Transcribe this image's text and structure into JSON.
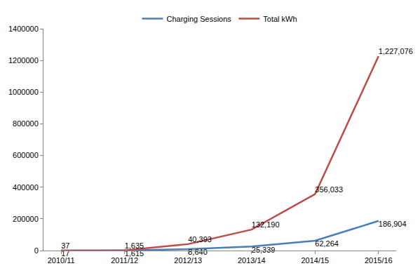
{
  "chart_data": {
    "type": "line",
    "categories": [
      "2010/11",
      "2011/12",
      "2012/13",
      "2013/14",
      "2014/15",
      "2015/16"
    ],
    "series": [
      {
        "name": "Charging Sessions",
        "color": "#4a7ebb",
        "values": [
          17,
          1615,
          8640,
          25339,
          62264,
          186904
        ],
        "value_labels": [
          "17",
          "1,615",
          "8,640",
          "25,339",
          "62,264",
          "186,904"
        ]
      },
      {
        "name": "Total kWh",
        "color": "#be4b48",
        "values": [
          37,
          1635,
          40393,
          132190,
          356033,
          1227076
        ],
        "value_labels": [
          "37",
          "1,635",
          "40,393",
          "132,190",
          "356,033",
          "1,227,076"
        ]
      }
    ],
    "ylim": [
      0,
      1400000
    ],
    "yticks": [
      0,
      200000,
      400000,
      600000,
      800000,
      1000000,
      1200000,
      1400000
    ],
    "grid": false,
    "legend": "top",
    "data_labels": true
  }
}
